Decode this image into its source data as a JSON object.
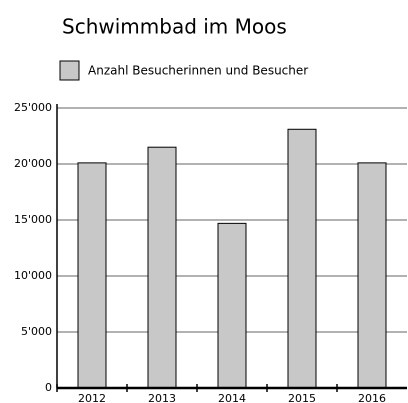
{
  "chart_data": {
    "type": "bar",
    "title": "Schwimmbad im Moos",
    "categories": [
      "2012",
      "2013",
      "2014",
      "2015",
      "2016"
    ],
    "series": [
      {
        "name": "Anzahl Besucherinnen und Besucher",
        "color": "#c8c8c8",
        "values": [
          20100,
          21500,
          14700,
          23100,
          20100
        ]
      }
    ],
    "ylim": [
      0,
      25000
    ],
    "yticks": [
      0,
      {
        "value": 5000,
        "label": "5'000"
      },
      {
        "value": 10000,
        "label": "10'000"
      },
      {
        "value": 15000,
        "label": "15'000"
      },
      {
        "value": 20000,
        "label": "20'000"
      },
      {
        "value": 25000,
        "label": "25'000"
      }
    ],
    "grid": true
  }
}
